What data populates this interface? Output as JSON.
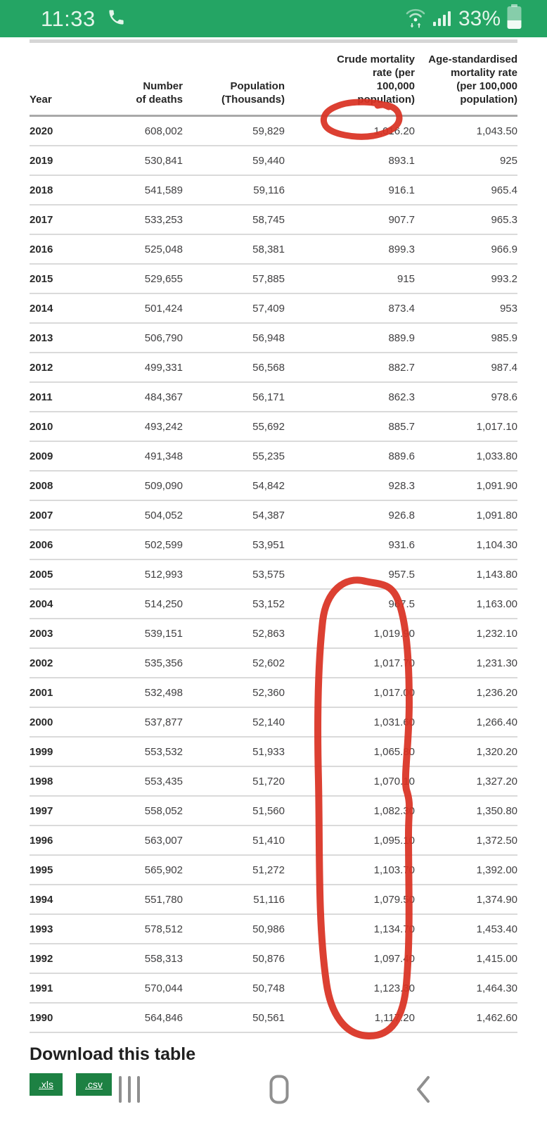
{
  "status_bar": {
    "time": "11:33",
    "battery_percent": "33%",
    "bg_color": "#24a564"
  },
  "table": {
    "columns": [
      "Year",
      "Number\nof deaths",
      "Population\n(Thousands)",
      "Crude mortality\nrate (per\n100,000\npopulation)",
      "Age-standardised\nmortality rate\n(per 100,000\npopulation)"
    ],
    "rows": [
      {
        "year": "2020",
        "deaths": "608,002",
        "population": "59,829",
        "crude": "1,016.20",
        "age_std": "1,043.50"
      },
      {
        "year": "2019",
        "deaths": "530,841",
        "population": "59,440",
        "crude": "893.1",
        "age_std": "925"
      },
      {
        "year": "2018",
        "deaths": "541,589",
        "population": "59,116",
        "crude": "916.1",
        "age_std": "965.4"
      },
      {
        "year": "2017",
        "deaths": "533,253",
        "population": "58,745",
        "crude": "907.7",
        "age_std": "965.3"
      },
      {
        "year": "2016",
        "deaths": "525,048",
        "population": "58,381",
        "crude": "899.3",
        "age_std": "966.9"
      },
      {
        "year": "2015",
        "deaths": "529,655",
        "population": "57,885",
        "crude": "915",
        "age_std": "993.2"
      },
      {
        "year": "2014",
        "deaths": "501,424",
        "population": "57,409",
        "crude": "873.4",
        "age_std": "953"
      },
      {
        "year": "2013",
        "deaths": "506,790",
        "population": "56,948",
        "crude": "889.9",
        "age_std": "985.9"
      },
      {
        "year": "2012",
        "deaths": "499,331",
        "population": "56,568",
        "crude": "882.7",
        "age_std": "987.4"
      },
      {
        "year": "2011",
        "deaths": "484,367",
        "population": "56,171",
        "crude": "862.3",
        "age_std": "978.6"
      },
      {
        "year": "2010",
        "deaths": "493,242",
        "population": "55,692",
        "crude": "885.7",
        "age_std": "1,017.10"
      },
      {
        "year": "2009",
        "deaths": "491,348",
        "population": "55,235",
        "crude": "889.6",
        "age_std": "1,033.80"
      },
      {
        "year": "2008",
        "deaths": "509,090",
        "population": "54,842",
        "crude": "928.3",
        "age_std": "1,091.90"
      },
      {
        "year": "2007",
        "deaths": "504,052",
        "population": "54,387",
        "crude": "926.8",
        "age_std": "1,091.80"
      },
      {
        "year": "2006",
        "deaths": "502,599",
        "population": "53,951",
        "crude": "931.6",
        "age_std": "1,104.30"
      },
      {
        "year": "2005",
        "deaths": "512,993",
        "population": "53,575",
        "crude": "957.5",
        "age_std": "1,143.80"
      },
      {
        "year": "2004",
        "deaths": "514,250",
        "population": "53,152",
        "crude": "967.5",
        "age_std": "1,163.00"
      },
      {
        "year": "2003",
        "deaths": "539,151",
        "population": "52,863",
        "crude": "1,019.90",
        "age_std": "1,232.10"
      },
      {
        "year": "2002",
        "deaths": "535,356",
        "population": "52,602",
        "crude": "1,017.70",
        "age_std": "1,231.30"
      },
      {
        "year": "2001",
        "deaths": "532,498",
        "population": "52,360",
        "crude": "1,017.00",
        "age_std": "1,236.20"
      },
      {
        "year": "2000",
        "deaths": "537,877",
        "population": "52,140",
        "crude": "1,031.60",
        "age_std": "1,266.40"
      },
      {
        "year": "1999",
        "deaths": "553,532",
        "population": "51,933",
        "crude": "1,065.80",
        "age_std": "1,320.20"
      },
      {
        "year": "1998",
        "deaths": "553,435",
        "population": "51,720",
        "crude": "1,070.10",
        "age_std": "1,327.20"
      },
      {
        "year": "1997",
        "deaths": "558,052",
        "population": "51,560",
        "crude": "1,082.30",
        "age_std": "1,350.80"
      },
      {
        "year": "1996",
        "deaths": "563,007",
        "population": "51,410",
        "crude": "1,095.10",
        "age_std": "1,372.50"
      },
      {
        "year": "1995",
        "deaths": "565,902",
        "population": "51,272",
        "crude": "1,103.70",
        "age_std": "1,392.00"
      },
      {
        "year": "1994",
        "deaths": "551,780",
        "population": "51,116",
        "crude": "1,079.50",
        "age_std": "1,374.90"
      },
      {
        "year": "1993",
        "deaths": "578,512",
        "population": "50,986",
        "crude": "1,134.70",
        "age_std": "1,453.40"
      },
      {
        "year": "1992",
        "deaths": "558,313",
        "population": "50,876",
        "crude": "1,097.40",
        "age_std": "1,415.00"
      },
      {
        "year": "1991",
        "deaths": "570,044",
        "population": "50,748",
        "crude": "1,123.30",
        "age_std": "1,464.30"
      },
      {
        "year": "1990",
        "deaths": "564,846",
        "population": "50,561",
        "crude": "1,117.20",
        "age_std": "1,462.60"
      }
    ]
  },
  "download": {
    "heading": "Download this table",
    "buttons": [
      {
        "label": ".xls"
      },
      {
        "label": ".csv"
      }
    ],
    "button_color": "#1d8143"
  },
  "annotations": {
    "color": "#d93222",
    "items": [
      "hand-drawn circle around 2020 crude mortality rate 1,016.20",
      "hand-drawn oval around crude mortality rates for 2004-1990"
    ]
  }
}
